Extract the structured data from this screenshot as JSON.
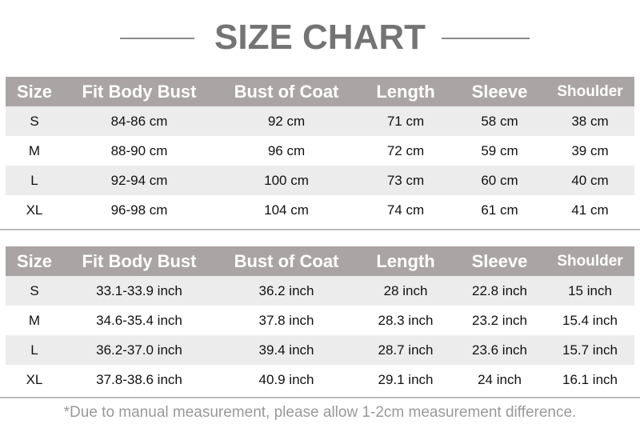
{
  "title": "SIZE CHART",
  "headers": [
    "Size",
    "Fit Body Bust",
    "Bust of Coat",
    "Length",
    "Sleeve",
    "Shoulder"
  ],
  "cm_rows": [
    [
      "S",
      "84-86 cm",
      "92 cm",
      "71 cm",
      "58 cm",
      "38 cm"
    ],
    [
      "M",
      "88-90 cm",
      "96 cm",
      "72 cm",
      "59 cm",
      "39 cm"
    ],
    [
      "L",
      "92-94 cm",
      "100 cm",
      "73 cm",
      "60 cm",
      "40 cm"
    ],
    [
      "XL",
      "96-98 cm",
      "104 cm",
      "74 cm",
      "61 cm",
      "41 cm"
    ]
  ],
  "inch_rows": [
    [
      "S",
      "33.1-33.9 inch",
      "36.2 inch",
      "28 inch",
      "22.8 inch",
      "15 inch"
    ],
    [
      "M",
      "34.6-35.4 inch",
      "37.8 inch",
      "28.3 inch",
      "23.2 inch",
      "15.4 inch"
    ],
    [
      "L",
      "36.2-37.0 inch",
      "39.4 inch",
      "28.7 inch",
      "23.6 inch",
      "15.7 inch"
    ],
    [
      "XL",
      "37.8-38.6 inch",
      "40.9 inch",
      "29.1 inch",
      "24 inch",
      "16.1 inch"
    ]
  ],
  "note": "*Due to manual measurement, please allow 1-2cm measurement difference.",
  "colors": {
    "header_bg": "#aaa5a4",
    "title": "#747474",
    "alt_row": "#ececec"
  }
}
